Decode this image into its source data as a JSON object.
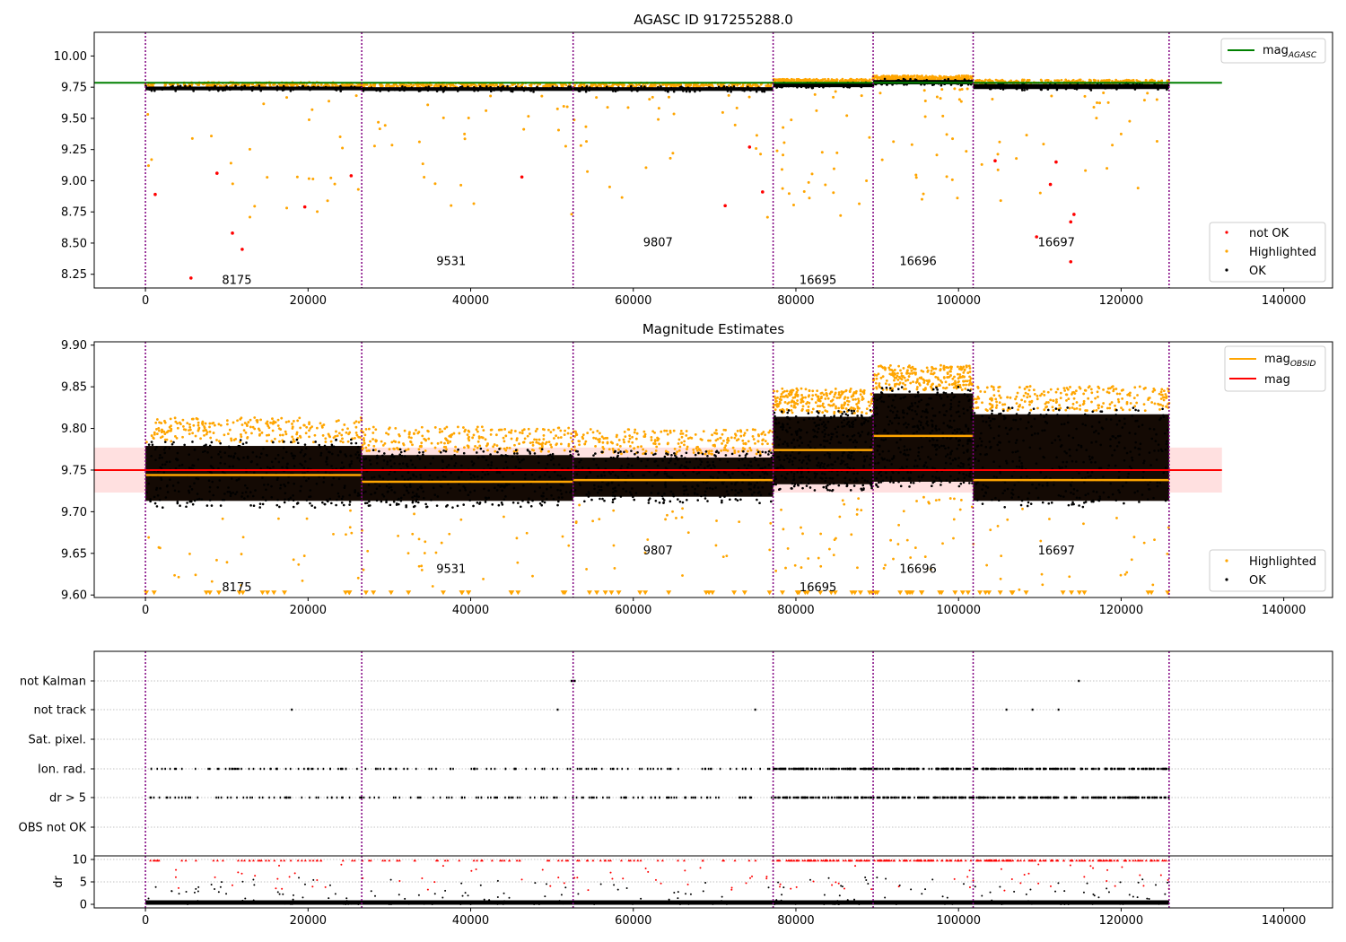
{
  "figure": {
    "obsids": [
      "8175",
      "9531",
      "9807",
      "16695",
      "16696",
      "16697"
    ],
    "obsid_boundaries": [
      0,
      26600,
      52600,
      77200,
      89500,
      101800,
      125900
    ]
  },
  "colors": {
    "ok": "#000000",
    "highlighted": "#ffa500",
    "not_ok": "#ff0000",
    "mag_agasc": "#008000",
    "mag": "#ff0000",
    "mag_obsid": "#ffa500",
    "boundary": "#800080",
    "band": "#ffdddd",
    "grid": "#b0b0b0"
  },
  "chart_data": [
    {
      "type": "scatter",
      "title": "AGASC ID 917255288.0",
      "xlabel": "",
      "ylabel": "",
      "xlim": [
        -6300,
        146000
      ],
      "ylim": [
        8.14,
        10.19
      ],
      "xticks": [
        0,
        20000,
        40000,
        60000,
        80000,
        100000,
        120000,
        140000
      ],
      "yticks": [
        "8.25",
        "8.50",
        "8.75",
        "9.00",
        "9.25",
        "9.50",
        "9.75",
        "10.00"
      ],
      "legend_top": {
        "position": "upper right",
        "entries": [
          {
            "label": "mag",
            "sub": "AGASC"
          }
        ]
      },
      "legend_bottom": {
        "position": "lower right",
        "entries": [
          "not OK",
          "Highlighted",
          "OK"
        ]
      },
      "mag_agasc": 9.785,
      "mag_agasc_xrange": [
        -6300,
        132400
      ],
      "obsid_label_y": [
        8.21,
        8.36,
        8.51,
        8.21,
        8.36,
        8.51
      ],
      "ok_bands": [
        {
          "x": [
            0,
            26600
          ],
          "center": 9.74,
          "width": 0.03
        },
        {
          "x": [
            26600,
            52600
          ],
          "center": 9.735,
          "width": 0.03
        },
        {
          "x": [
            52600,
            77200
          ],
          "center": 9.735,
          "width": 0.03
        },
        {
          "x": [
            77200,
            89500
          ],
          "center": 9.765,
          "width": 0.03
        },
        {
          "x": [
            89500,
            101800
          ],
          "center": 9.79,
          "width": 0.035
        },
        {
          "x": [
            101800,
            125900
          ],
          "center": 9.755,
          "width": 0.04
        }
      ],
      "not_ok_points": [
        [
          1200,
          8.89
        ],
        [
          5600,
          8.22
        ],
        [
          8800,
          9.06
        ],
        [
          10700,
          8.58
        ],
        [
          11900,
          8.45
        ],
        [
          19600,
          8.79
        ],
        [
          25300,
          9.04
        ],
        [
          46300,
          9.03
        ],
        [
          71300,
          8.8
        ],
        [
          74300,
          9.27
        ],
        [
          75900,
          8.91
        ],
        [
          104500,
          9.16
        ],
        [
          111300,
          8.97
        ],
        [
          112000,
          9.15
        ],
        [
          113800,
          8.67
        ],
        [
          113800,
          8.35
        ],
        [
          114200,
          8.73
        ],
        [
          109600,
          8.55
        ]
      ]
    },
    {
      "type": "scatter",
      "title": "Magnitude Estimates",
      "xlabel": "",
      "ylabel": "",
      "xlim": [
        -6300,
        146000
      ],
      "ylim": [
        9.597,
        9.904
      ],
      "xticks": [
        0,
        20000,
        40000,
        60000,
        80000,
        100000,
        120000,
        140000
      ],
      "yticks": [
        "9.60",
        "9.65",
        "9.70",
        "9.75",
        "9.80",
        "9.85",
        "9.90"
      ],
      "legend_top": {
        "position": "upper right",
        "entries": [
          {
            "label": "mag",
            "sub": "OBSID"
          },
          {
            "label": "mag",
            "sub": ""
          }
        ]
      },
      "legend_bottom": {
        "position": "lower right",
        "entries": [
          "Highlighted",
          "OK"
        ]
      },
      "mag": 9.75,
      "mag_band": [
        9.723,
        9.777
      ],
      "mag_xrange": [
        -6300,
        132400
      ],
      "mag_obsid": [
        9.744,
        9.736,
        9.738,
        9.774,
        9.791,
        9.738
      ],
      "obsid_label_y": [
        9.61,
        9.632,
        9.654,
        9.61,
        9.632,
        9.654
      ],
      "ok_spread": [
        {
          "x": [
            0,
            26600
          ],
          "lo": 9.705,
          "hi": 9.787
        },
        {
          "x": [
            26600,
            52600
          ],
          "lo": 9.705,
          "hi": 9.776
        },
        {
          "x": [
            52600,
            77200
          ],
          "lo": 9.71,
          "hi": 9.773
        },
        {
          "x": [
            77200,
            89500
          ],
          "lo": 9.725,
          "hi": 9.822
        },
        {
          "x": [
            89500,
            101800
          ],
          "lo": 9.728,
          "hi": 9.85
        },
        {
          "x": [
            101800,
            125900
          ],
          "lo": 9.705,
          "hi": 9.825
        }
      ]
    },
    {
      "type": "scatter",
      "xlim": [
        -6300,
        146000
      ],
      "xticks": [
        0,
        20000,
        40000,
        60000,
        80000,
        100000,
        120000,
        140000
      ],
      "flag_rows": [
        "not Kalman",
        "not track",
        "Sat. pixel.",
        "Ion. rad.",
        "dr > 5",
        "OBS not OK"
      ],
      "dr_axis": {
        "ylabel": "dr",
        "yticks": [
          "0",
          "5",
          "10"
        ],
        "ylim": [
          -0.8,
          10.8
        ]
      },
      "not_kalman_points": [
        52400,
        52600,
        52800,
        114800
      ],
      "not_track_points": [
        18000,
        50700,
        75000,
        105900,
        109100,
        112300
      ]
    }
  ]
}
